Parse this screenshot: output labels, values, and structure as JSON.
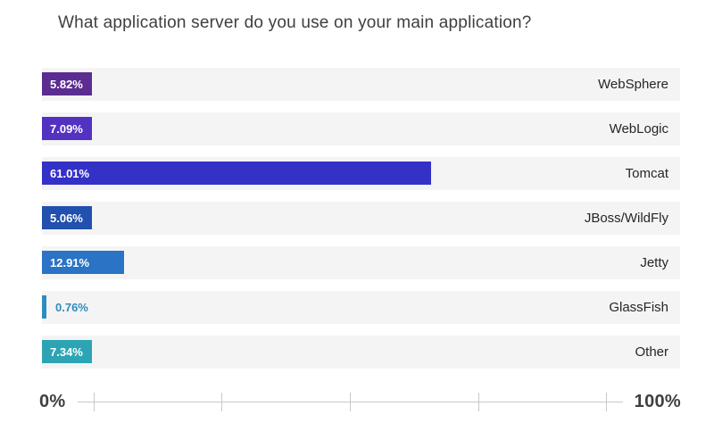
{
  "title": "What application server do you use on your main application?",
  "chart_data": {
    "type": "bar",
    "orientation": "horizontal",
    "title": "What application server do you use on your main application?",
    "categories": [
      "WebSphere",
      "WebLogic",
      "Tomcat",
      "JBoss/WildFly",
      "Jetty",
      "GlassFish",
      "Other"
    ],
    "values": [
      5.82,
      7.09,
      61.01,
      5.06,
      12.91,
      0.76,
      7.34
    ],
    "value_labels": [
      "5.82%",
      "7.09%",
      "61.01%",
      "5.06%",
      "12.91%",
      "0.76%",
      "7.34%"
    ],
    "bar_colors": [
      "#5b2d90",
      "#5331c1",
      "#3431c7",
      "#2150ae",
      "#2b73c4",
      "#2e8cbe",
      "#2da4b3"
    ],
    "xlim": [
      0,
      100
    ],
    "xlabel": "",
    "ylabel": "",
    "x_axis": {
      "min_label": "0%",
      "max_label": "100%",
      "tick_count": 5,
      "tick_labels_shown": false
    },
    "legend": "none",
    "grid": "off"
  },
  "axis": {
    "min_label": "0%",
    "max_label": "100%"
  },
  "colors": {
    "page_background": "#ffffff",
    "row_track_background": "#f4f4f5",
    "title_text": "#3f3f3f",
    "category_text": "#262626",
    "bar_value_text_inside": "#ffffff",
    "axis_text": "#3f3f3f",
    "axis_line": "#c9c9c9"
  }
}
